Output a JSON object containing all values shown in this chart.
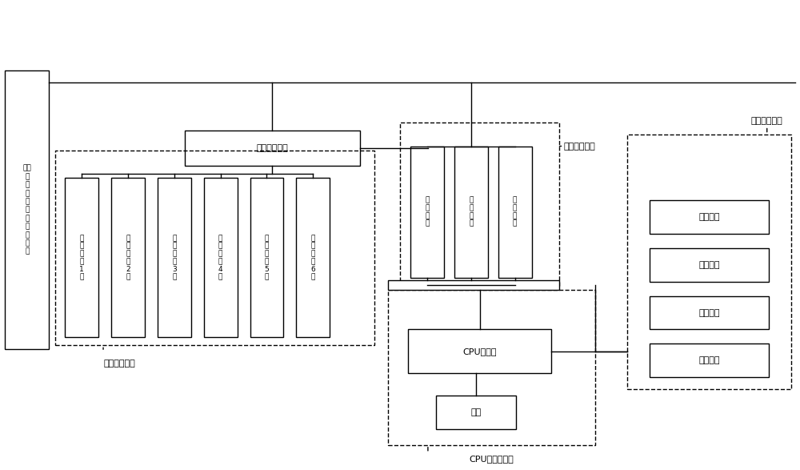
{
  "bg_color": "#ffffff",
  "line_color": "#000000",
  "dash_color": "#000000",
  "title": "",
  "left_label": "机械\n室\n防\n雷\n分\n线\n柜\n接\n线\n端\n子",
  "load_terminal_label": "负载接入端子",
  "analog_loads": [
    "模\n拟\n负\n载\n1\n路",
    "模\n拟\n负\n载\n2\n路",
    "模\n拟\n负\n载\n3\n路",
    "模\n拟\n负\n载\n4\n路",
    "模\n拟\n负\n载\n5\n路",
    "模\n拟\n负\n载\n6\n路"
  ],
  "analog_module_label": "模拟负载模块",
  "collect_boxes": [
    "电\n压\n采\n集",
    "电\n流\n采\n集",
    "相\n位\n采\n集"
  ],
  "collect_module_label": "采集测试模块",
  "cpu_label": "CPU处理器",
  "base_label": "基准",
  "cpu_module_label": "CPU处理器模块",
  "output_boxes": [
    "电压显示",
    "电流显示",
    "相位显示",
    "故障指示"
  ],
  "output_module_label": "诊断输出模块"
}
